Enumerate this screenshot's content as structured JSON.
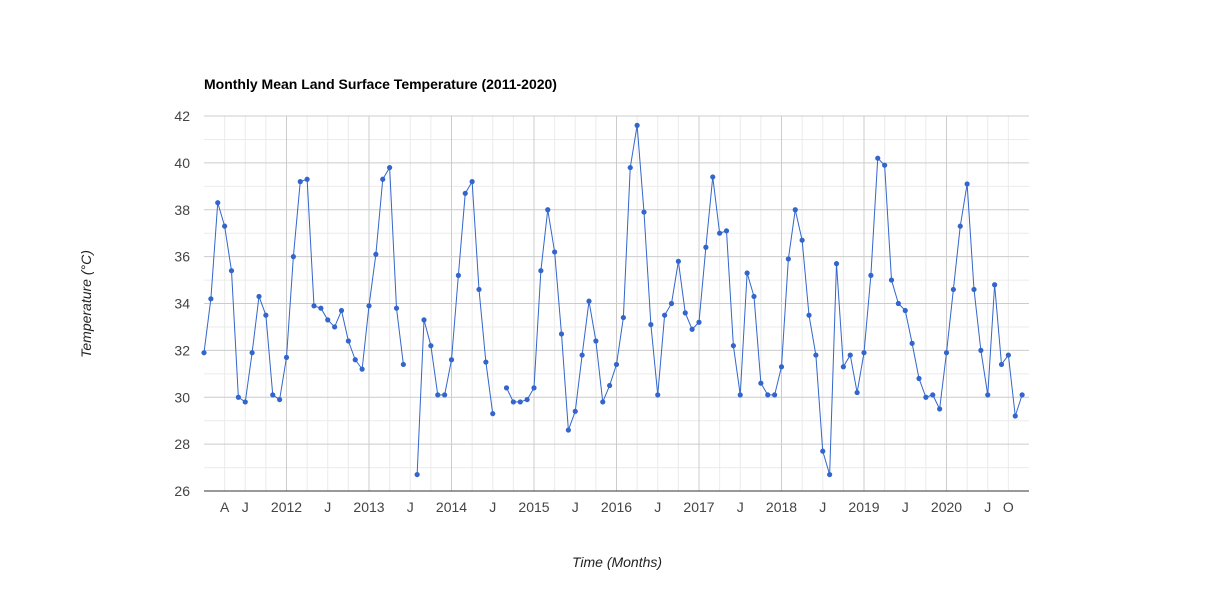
{
  "chart_data": {
    "type": "line",
    "title": "Monthly Mean Land Surface Temperature (2011-2020)",
    "xlabel": "Time (Months)",
    "ylabel": "Temperature (°C)",
    "ylim": [
      26,
      42
    ],
    "yticks": [
      26,
      28,
      30,
      32,
      34,
      36,
      38,
      40,
      42
    ],
    "x_range": [
      "2011-01",
      "2021-01"
    ],
    "xticks": [
      {
        "date": "2011-04",
        "label": "A"
      },
      {
        "date": "2011-07",
        "label": "J"
      },
      {
        "date": "2012-01",
        "label": "2012"
      },
      {
        "date": "2012-07",
        "label": "J"
      },
      {
        "date": "2013-01",
        "label": "2013"
      },
      {
        "date": "2013-07",
        "label": "J"
      },
      {
        "date": "2014-01",
        "label": "2014"
      },
      {
        "date": "2014-07",
        "label": "J"
      },
      {
        "date": "2015-01",
        "label": "2015"
      },
      {
        "date": "2015-07",
        "label": "J"
      },
      {
        "date": "2016-01",
        "label": "2016"
      },
      {
        "date": "2016-07",
        "label": "J"
      },
      {
        "date": "2017-01",
        "label": "2017"
      },
      {
        "date": "2017-07",
        "label": "J"
      },
      {
        "date": "2018-01",
        "label": "2018"
      },
      {
        "date": "2018-07",
        "label": "J"
      },
      {
        "date": "2019-01",
        "label": "2019"
      },
      {
        "date": "2019-07",
        "label": "J"
      },
      {
        "date": "2020-01",
        "label": "2020"
      },
      {
        "date": "2020-07",
        "label": "J"
      },
      {
        "date": "2020-10",
        "label": "O"
      }
    ],
    "grid": true,
    "color": "#3366cc",
    "series": [
      {
        "points": [
          [
            "2011-01",
            31.9
          ],
          [
            "2011-02",
            34.2
          ],
          [
            "2011-03",
            38.3
          ],
          [
            "2011-04",
            37.3
          ],
          [
            "2011-05",
            35.4
          ],
          [
            "2011-06",
            30.0
          ],
          [
            "2011-07",
            29.8
          ],
          [
            "2011-08",
            31.9
          ],
          [
            "2011-09",
            34.3
          ],
          [
            "2011-10",
            33.5
          ],
          [
            "2011-11",
            30.1
          ],
          [
            "2011-12",
            29.9
          ],
          [
            "2012-01",
            31.7
          ],
          [
            "2012-02",
            36.0
          ],
          [
            "2012-03",
            39.2
          ],
          [
            "2012-04",
            39.3
          ],
          [
            "2012-05",
            33.9
          ],
          [
            "2012-06",
            33.8
          ],
          [
            "2012-07",
            33.3
          ],
          [
            "2012-08",
            33.0
          ],
          [
            "2012-09",
            33.7
          ],
          [
            "2012-10",
            32.4
          ],
          [
            "2012-11",
            31.6
          ],
          [
            "2012-12",
            31.2
          ],
          [
            "2013-01",
            33.9
          ],
          [
            "2013-02",
            36.1
          ],
          [
            "2013-03",
            39.3
          ],
          [
            "2013-04",
            39.8
          ],
          [
            "2013-05",
            33.8
          ],
          [
            "2013-06",
            31.4
          ],
          [
            "2013-08",
            26.7
          ],
          [
            "2013-09",
            33.3
          ],
          [
            "2013-10",
            32.2
          ],
          [
            "2013-11",
            30.1
          ],
          [
            "2013-12",
            30.1
          ],
          [
            "2014-01",
            31.6
          ],
          [
            "2014-02",
            35.2
          ],
          [
            "2014-03",
            38.7
          ],
          [
            "2014-04",
            39.2
          ],
          [
            "2014-05",
            34.6
          ],
          [
            "2014-06",
            31.5
          ],
          [
            "2014-07",
            29.3
          ],
          [
            "2014-09",
            30.4
          ],
          [
            "2014-10",
            29.8
          ],
          [
            "2014-11",
            29.8
          ],
          [
            "2014-12",
            29.9
          ],
          [
            "2015-01",
            30.4
          ],
          [
            "2015-02",
            35.4
          ],
          [
            "2015-03",
            38.0
          ],
          [
            "2015-04",
            36.2
          ],
          [
            "2015-05",
            32.7
          ],
          [
            "2015-06",
            28.6
          ],
          [
            "2015-07",
            29.4
          ],
          [
            "2015-08",
            31.8
          ],
          [
            "2015-09",
            34.1
          ],
          [
            "2015-10",
            32.4
          ],
          [
            "2015-11",
            29.8
          ],
          [
            "2015-12",
            30.5
          ],
          [
            "2016-01",
            31.4
          ],
          [
            "2016-02",
            33.4
          ],
          [
            "2016-03",
            39.8
          ],
          [
            "2016-04",
            41.6
          ],
          [
            "2016-05",
            37.9
          ],
          [
            "2016-06",
            33.1
          ],
          [
            "2016-07",
            30.1
          ],
          [
            "2016-08",
            33.5
          ],
          [
            "2016-09",
            34.0
          ],
          [
            "2016-10",
            35.8
          ],
          [
            "2016-11",
            33.6
          ],
          [
            "2016-12",
            32.9
          ],
          [
            "2017-01",
            33.2
          ],
          [
            "2017-02",
            36.4
          ],
          [
            "2017-03",
            39.4
          ],
          [
            "2017-04",
            37.0
          ],
          [
            "2017-05",
            37.1
          ],
          [
            "2017-06",
            32.2
          ],
          [
            "2017-07",
            30.1
          ],
          [
            "2017-08",
            35.3
          ],
          [
            "2017-09",
            34.3
          ],
          [
            "2017-10",
            30.6
          ],
          [
            "2017-11",
            30.1
          ],
          [
            "2017-12",
            30.1
          ],
          [
            "2018-01",
            31.3
          ],
          [
            "2018-02",
            35.9
          ],
          [
            "2018-03",
            38.0
          ],
          [
            "2018-04",
            36.7
          ],
          [
            "2018-05",
            33.5
          ],
          [
            "2018-06",
            31.8
          ],
          [
            "2018-07",
            27.7
          ],
          [
            "2018-08",
            26.7
          ],
          [
            "2018-09",
            35.7
          ],
          [
            "2018-10",
            31.3
          ],
          [
            "2018-11",
            31.8
          ],
          [
            "2018-12",
            30.2
          ],
          [
            "2019-01",
            31.9
          ],
          [
            "2019-02",
            35.2
          ],
          [
            "2019-03",
            40.2
          ],
          [
            "2019-04",
            39.9
          ],
          [
            "2019-05",
            35.0
          ],
          [
            "2019-06",
            34.0
          ],
          [
            "2019-07",
            33.7
          ],
          [
            "2019-08",
            32.3
          ],
          [
            "2019-09",
            30.8
          ],
          [
            "2019-10",
            30.0
          ],
          [
            "2019-11",
            30.1
          ],
          [
            "2019-12",
            29.5
          ],
          [
            "2020-01",
            31.9
          ],
          [
            "2020-02",
            34.6
          ],
          [
            "2020-03",
            37.3
          ],
          [
            "2020-04",
            39.1
          ],
          [
            "2020-05",
            34.6
          ],
          [
            "2020-06",
            32.0
          ],
          [
            "2020-07",
            30.1
          ],
          [
            "2020-08",
            34.8
          ],
          [
            "2020-09",
            31.4
          ],
          [
            "2020-10",
            31.8
          ],
          [
            "2020-11",
            29.2
          ],
          [
            "2020-12",
            30.1
          ]
        ]
      }
    ]
  }
}
